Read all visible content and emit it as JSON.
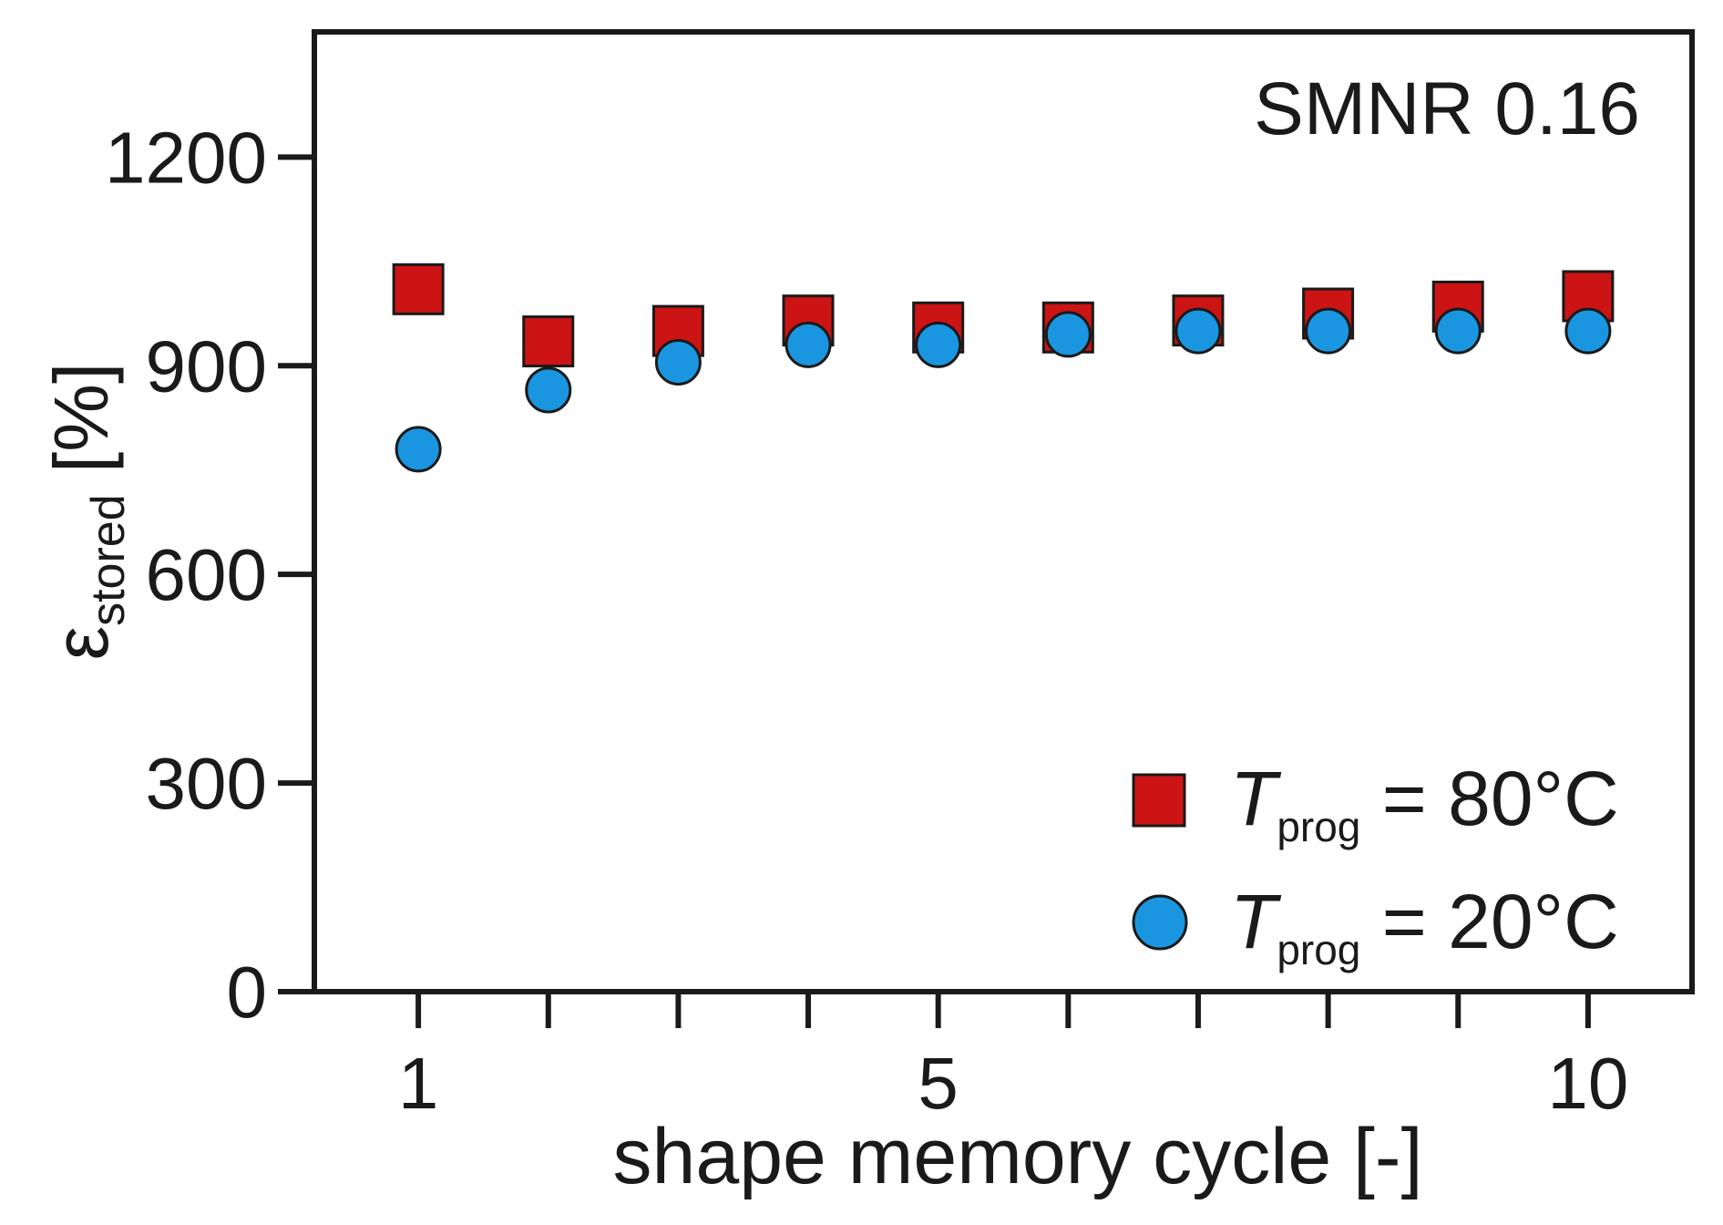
{
  "chart_data": {
    "type": "scatter",
    "title": "",
    "annotation": "SMNR 0.16",
    "xlabel": "shape memory cycle [-]",
    "ylabel": {
      "symbol": "ε",
      "subscript": "stored",
      "unit": "[%]"
    },
    "xlim": [
      0.2,
      10.8
    ],
    "ylim": [
      0,
      1380
    ],
    "xticks": [
      1,
      2,
      3,
      4,
      5,
      6,
      7,
      8,
      9,
      10
    ],
    "xtick_labels": [
      {
        "value": 1,
        "label": "1"
      },
      {
        "value": 5,
        "label": "5"
      },
      {
        "value": 10,
        "label": "10"
      }
    ],
    "yticks": [
      0,
      300,
      600,
      900,
      1200
    ],
    "ytick_labels": [
      "0",
      "300",
      "600",
      "900",
      "1200"
    ],
    "grid": false,
    "legend_position": "bottom-right",
    "series": [
      {
        "name": "T_prog = 80°C",
        "legend": {
          "italic": "T",
          "subscript": "prog",
          "rest": " = 80°C"
        },
        "marker": "square",
        "color": "#cc1414",
        "x": [
          1,
          2,
          3,
          4,
          5,
          6,
          7,
          8,
          9,
          10
        ],
        "values": [
          1010,
          935,
          950,
          965,
          955,
          955,
          965,
          975,
          985,
          1000
        ]
      },
      {
        "name": "T_prog = 20°C",
        "legend": {
          "italic": "T",
          "subscript": "prog",
          "rest": " = 20°C"
        },
        "marker": "circle",
        "color": "#1a96e0",
        "x": [
          1,
          2,
          3,
          4,
          5,
          6,
          7,
          8,
          9,
          10
        ],
        "values": [
          780,
          865,
          905,
          930,
          930,
          945,
          950,
          950,
          950,
          950
        ]
      }
    ]
  }
}
